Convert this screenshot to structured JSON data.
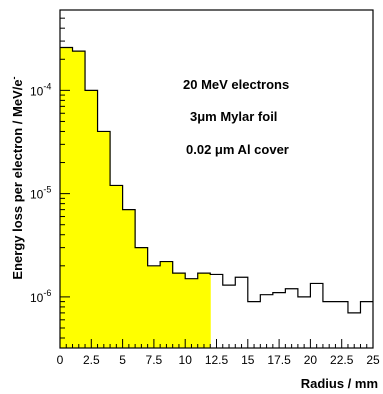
{
  "chart_data": {
    "type": "bar",
    "xlabel": "Radius / mm",
    "ylabel": "Energy loss per electron / MeV/e",
    "ylabel_sup": "-",
    "xlim": [
      0,
      25
    ],
    "ylim": [
      3.2e-07,
      0.0006
    ],
    "yscale": "log",
    "bin_width": 1,
    "x_ticks": [
      {
        "value": 0,
        "label": "0"
      },
      {
        "value": 2.5,
        "label": "2.5"
      },
      {
        "value": 5,
        "label": "5"
      },
      {
        "value": 7.5,
        "label": "7.5"
      },
      {
        "value": 10,
        "label": "10"
      },
      {
        "value": 12.5,
        "label": "12.5"
      },
      {
        "value": 15,
        "label": "15"
      },
      {
        "value": 17.5,
        "label": "17.5"
      },
      {
        "value": 20,
        "label": "20"
      },
      {
        "value": 22.5,
        "label": "22.5"
      },
      {
        "value": 25,
        "label": "25"
      }
    ],
    "y_ticks": [
      {
        "value": 1e-06,
        "base": "10",
        "exp": "-6"
      },
      {
        "value": 1e-05,
        "base": "10",
        "exp": "-5"
      },
      {
        "value": 0.0001,
        "base": "10",
        "exp": "-4"
      }
    ],
    "x": [
      0,
      1,
      2,
      3,
      4,
      5,
      6,
      7,
      8,
      9,
      10,
      11,
      12,
      13,
      14,
      15,
      16,
      17,
      18,
      19,
      20,
      21,
      22,
      23,
      24
    ],
    "values": [
      0.00026,
      0.00024,
      0.0001,
      4e-05,
      1.2e-05,
      7e-06,
      3e-06,
      2e-06,
      2.2e-06,
      1.7e-06,
      1.5e-06,
      1.7e-06,
      1.65e-06,
      1.3e-06,
      1.55e-06,
      9e-07,
      1.05e-06,
      1.1e-06,
      1.2e-06,
      1e-06,
      1.35e-06,
      9e-07,
      9e-07,
      7e-07,
      9e-07
    ],
    "highlight_xlim": [
      0,
      12
    ],
    "highlight_color": "#ffff00",
    "annotations": [
      "20 MeV electrons",
      "3μm Mylar foil",
      "0.02 μm Al cover"
    ]
  }
}
